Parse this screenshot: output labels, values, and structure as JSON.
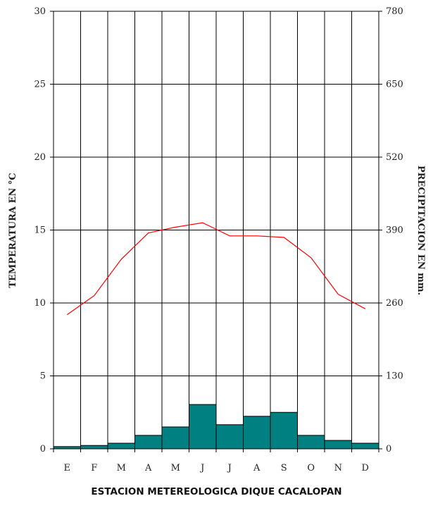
{
  "chart_data": {
    "type": "bar+line",
    "title": "ESTACION METEREOLOGICA DIQUE CACALOPAN",
    "categories": [
      "E",
      "F",
      "M",
      "A",
      "M",
      "J",
      "J",
      "A",
      "S",
      "O",
      "N",
      "D"
    ],
    "y_left": {
      "label": "TEMPERATURA EN °C",
      "lim": [
        0,
        30
      ],
      "ticks": [
        "0",
        "5",
        "10",
        "15",
        "20",
        "25",
        "30"
      ]
    },
    "y_right": {
      "label": "PRECIPITACION EN mm.",
      "lim": [
        0,
        780
      ],
      "ticks": [
        "0",
        "130",
        "260",
        "390",
        "520",
        "650",
        "780"
      ]
    },
    "series": [
      {
        "name": "Precipitación",
        "type": "bar",
        "axis": "right",
        "color": "#008080",
        "values": [
          4,
          6,
          10,
          24,
          39,
          79,
          43,
          58,
          65,
          24,
          15,
          10
        ]
      },
      {
        "name": "Temperatura",
        "type": "line",
        "axis": "left",
        "color": "#ff0000",
        "values": [
          9.2,
          10.5,
          13.0,
          14.8,
          15.2,
          15.5,
          14.6,
          14.6,
          14.5,
          13.1,
          10.6,
          9.6
        ]
      }
    ],
    "grid": {
      "vertical": true,
      "horizontal": true
    }
  }
}
